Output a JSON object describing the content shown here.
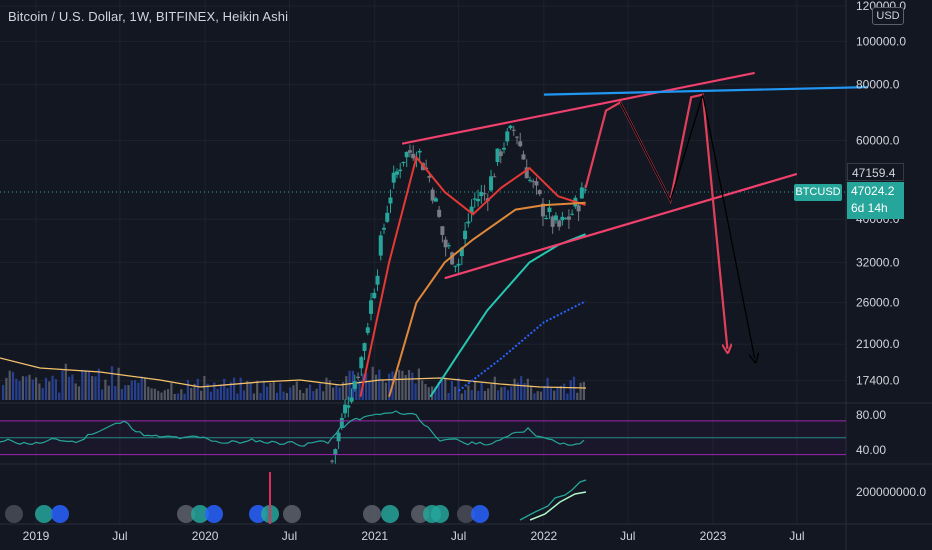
{
  "header": {
    "title": "Bitcoin / U.S. Dollar, 1W, BITFINEX, Heikin Ashi",
    "currency_button": "USD"
  },
  "price_axis": {
    "labels": [
      "120000.0",
      "100000.0",
      "80000.0",
      "60000.0",
      "40000.0",
      "32000.0",
      "26000.0",
      "21000.0",
      "17400.0"
    ]
  },
  "time_axis": {
    "labels": [
      "2019",
      "Jul",
      "2020",
      "Jul",
      "2021",
      "Jul",
      "2022",
      "Jul",
      "2023",
      "Jul"
    ]
  },
  "oscillator_axis": {
    "labels": [
      "80.00",
      "40.00"
    ]
  },
  "volume_axis": {
    "labels": [
      "200000000.0"
    ]
  },
  "price_tags": {
    "upper_value": "47159.4",
    "symbol": "BTCUSD",
    "current_value": "47024.2",
    "countdown": "6d 14h"
  },
  "colors": {
    "background": "#131722",
    "up_candle": "#26a69a",
    "down_candle": "#787b86",
    "ma_red": "#e53935",
    "ma_orange": "#e0883a",
    "ma_teal": "#26c6b0",
    "ma_blue": "#2962ff",
    "channel": "#f0406c",
    "resistance": "#2196f3",
    "projection": "#e2405a",
    "volume_ma": "#f5c26b",
    "rsi": "#26a69a",
    "rsi_band": "#9c27b0"
  },
  "chart_data": {
    "type": "candlestick",
    "title": "Bitcoin / U.S. Dollar, 1W, BITFINEX, Heikin Ashi",
    "symbol": "BTCUSD",
    "interval": "1W",
    "style": "Heikin Ashi",
    "y_scale": "log",
    "ylim": [
      15500,
      120000
    ],
    "xlim": [
      "2018-11-01",
      "2023-12-31"
    ],
    "y_ticks": [
      120000,
      100000,
      80000,
      60000,
      40000,
      32000,
      26000,
      21000,
      17400
    ],
    "x_ticks": [
      "2019",
      "Jul",
      "2020",
      "Jul",
      "2021",
      "Jul",
      "2022",
      "Jul",
      "2023",
      "Jul"
    ],
    "last_price": 47024.2,
    "upper_tag": 47159.4,
    "price_path": [
      [
        "2020-10-01",
        11500
      ],
      [
        "2020-11-01",
        15500
      ],
      [
        "2020-12-01",
        19000
      ],
      [
        "2021-01-01",
        29000
      ],
      [
        "2021-02-01",
        45000
      ],
      [
        "2021-03-01",
        55000
      ],
      [
        "2021-04-01",
        58000
      ],
      [
        "2021-05-01",
        49000
      ],
      [
        "2021-06-01",
        35000
      ],
      [
        "2021-07-01",
        32000
      ],
      [
        "2021-08-01",
        44000
      ],
      [
        "2021-09-01",
        46000
      ],
      [
        "2021-10-01",
        58000
      ],
      [
        "2021-11-01",
        64000
      ],
      [
        "2021-12-01",
        49000
      ],
      [
        "2022-01-01",
        42000
      ],
      [
        "2022-02-01",
        38000
      ],
      [
        "2022-03-01",
        41000
      ],
      [
        "2022-04-01",
        47000
      ]
    ],
    "moving_averages": [
      {
        "color": "ma_red",
        "points": [
          [
            "2020-12-01",
            16000
          ],
          [
            "2021-02-01",
            32000
          ],
          [
            "2021-04-01",
            55000
          ],
          [
            "2021-06-01",
            46000
          ],
          [
            "2021-08-01",
            41000
          ],
          [
            "2021-10-01",
            47000
          ],
          [
            "2021-12-01",
            52000
          ],
          [
            "2022-02-01",
            45000
          ],
          [
            "2022-04-01",
            43000
          ]
        ]
      },
      {
        "color": "ma_orange",
        "points": [
          [
            "2021-02-01",
            16000
          ],
          [
            "2021-04-01",
            26000
          ],
          [
            "2021-06-01",
            32000
          ],
          [
            "2021-08-01",
            36000
          ],
          [
            "2021-11-01",
            42000
          ],
          [
            "2022-01-01",
            43000
          ],
          [
            "2022-04-01",
            43500
          ]
        ]
      },
      {
        "color": "ma_teal",
        "points": [
          [
            "2021-05-01",
            16000
          ],
          [
            "2021-07-01",
            20000
          ],
          [
            "2021-09-01",
            25000
          ],
          [
            "2021-12-01",
            32000
          ],
          [
            "2022-02-01",
            35000
          ],
          [
            "2022-04-01",
            37000
          ]
        ]
      },
      {
        "color": "ma_blue",
        "points": [
          [
            "2021-07-01",
            16500
          ],
          [
            "2021-10-01",
            19500
          ],
          [
            "2022-01-01",
            23500
          ],
          [
            "2022-04-01",
            26200
          ]
        ]
      }
    ],
    "drawings": [
      {
        "kind": "trendline",
        "color": "channel",
        "points": [
          [
            "2021-03-01",
            59000
          ],
          [
            "2023-04-01",
            85000
          ]
        ]
      },
      {
        "kind": "trendline",
        "color": "channel",
        "points": [
          [
            "2021-06-01",
            29500
          ],
          [
            "2023-07-01",
            50500
          ]
        ]
      },
      {
        "kind": "trendline",
        "color": "resistance",
        "points": [
          [
            "2022-01-01",
            76000
          ],
          [
            "2023-12-01",
            79000
          ]
        ]
      },
      {
        "kind": "arrow-path",
        "color": "projection",
        "points": [
          [
            "2022-04-01",
            47000
          ],
          [
            "2022-05-15",
            70000
          ],
          [
            "2022-06-15",
            73000
          ],
          [
            "2022-10-01",
            44000
          ],
          [
            "2022-11-15",
            75000
          ],
          [
            "2022-12-10",
            76000
          ],
          [
            "2023-02-01",
            20500
          ]
        ]
      },
      {
        "kind": "path",
        "color": "#000000",
        "points": [
          [
            "2022-06-15",
            73000
          ],
          [
            "2022-10-01",
            44000
          ],
          [
            "2022-12-10",
            76000
          ],
          [
            "2023-04-01",
            19500
          ]
        ]
      }
    ],
    "oscillator": {
      "levels": [
        70,
        30
      ],
      "ylim": [
        20,
        90
      ],
      "current": 52
    }
  }
}
